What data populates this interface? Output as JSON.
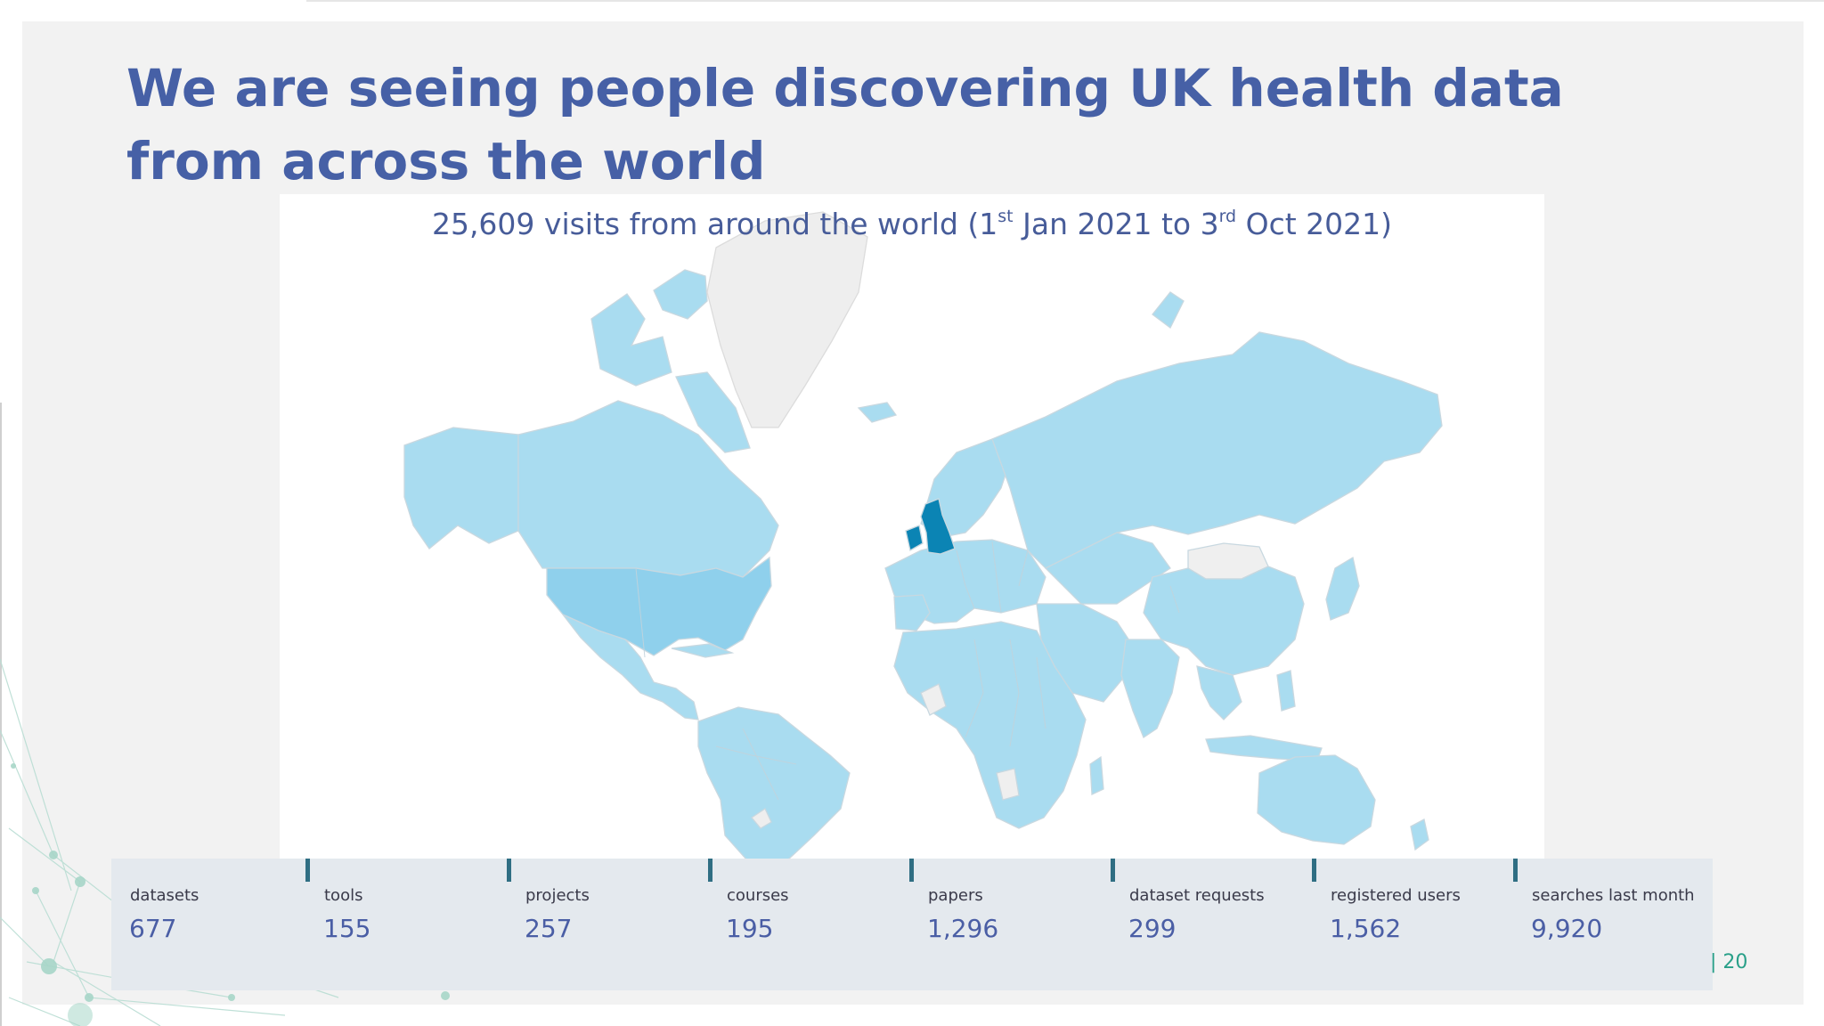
{
  "title": "We are seeing people discovering UK health data from across the world",
  "map": {
    "caption_part1": "25,609 visits from around the world (1",
    "caption_sup1": "st",
    "caption_part2": " Jan 2021 to 3",
    "caption_sup2": "rd",
    "caption_part3": " Oct 2021)",
    "colors": {
      "low": "#a9dcf0",
      "mid": "#8fd0ec",
      "high": "#0b84b4",
      "none": "#f1f1f1",
      "border": "#c8d8e0"
    }
  },
  "stats": [
    {
      "label": "datasets",
      "value": "677"
    },
    {
      "label": "tools",
      "value": "155"
    },
    {
      "label": "projects",
      "value": "257"
    },
    {
      "label": "courses",
      "value": "195"
    },
    {
      "label": "papers",
      "value": "1,296"
    },
    {
      "label": "dataset requests",
      "value": "299"
    },
    {
      "label": "registered users",
      "value": "1,562"
    },
    {
      "label": "searches last month",
      "value": "9,920"
    }
  ],
  "page_number": "| 20"
}
